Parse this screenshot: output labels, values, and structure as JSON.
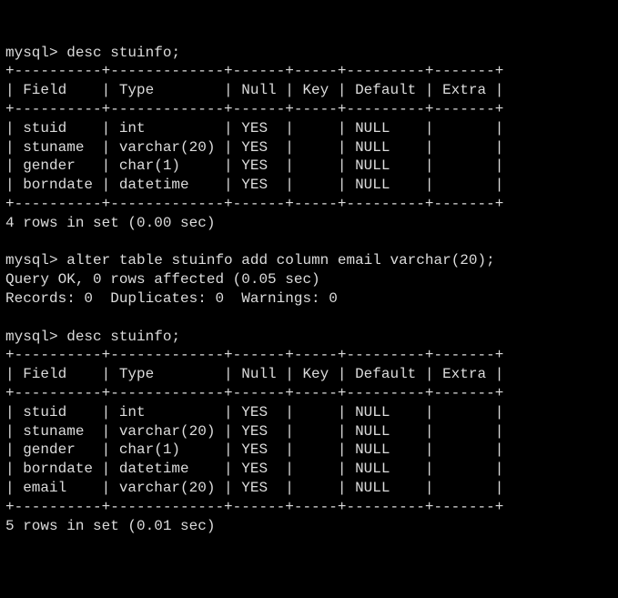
{
  "terminal": {
    "background_color": "#000000",
    "text_color": "#dcdcdc",
    "font_family": "Consolas, Courier New, monospace",
    "font_size": 16,
    "prompt": "mysql>",
    "blocks": [
      {
        "command": "desc stuinfo;",
        "table": {
          "border_top": "+----------+-------------+------+-----+---------+-------+",
          "header": "| Field    | Type        | Null | Key | Default | Extra |",
          "border_mid": "+----------+-------------+------+-----+---------+-------+",
          "columns": [
            "Field",
            "Type",
            "Null",
            "Key",
            "Default",
            "Extra"
          ],
          "rows": [
            [
              "stuid",
              "int",
              "YES",
              "",
              "NULL",
              ""
            ],
            [
              "stuname",
              "varchar(20)",
              "YES",
              "",
              "NULL",
              ""
            ],
            [
              "gender",
              "char(1)",
              "YES",
              "",
              "NULL",
              ""
            ],
            [
              "borndate",
              "datetime",
              "YES",
              "",
              "NULL",
              ""
            ]
          ],
          "row_lines": [
            "| stuid    | int         | YES  |     | NULL    |       |",
            "| stuname  | varchar(20) | YES  |     | NULL    |       |",
            "| gender   | char(1)     | YES  |     | NULL    |       |",
            "| borndate | datetime    | YES  |     | NULL    |       |"
          ],
          "border_bottom": "+----------+-------------+------+-----+---------+-------+"
        },
        "footer": "4 rows in set (0.00 sec)"
      },
      {
        "command": "alter table stuinfo add column email varchar(20);",
        "result_lines": [
          "Query OK, 0 rows affected (0.05 sec)",
          "Records: 0  Duplicates: 0  Warnings: 0"
        ]
      },
      {
        "command": "desc stuinfo;",
        "table": {
          "border_top": "+----------+-------------+------+-----+---------+-------+",
          "header": "| Field    | Type        | Null | Key | Default | Extra |",
          "border_mid": "+----------+-------------+------+-----+---------+-------+",
          "columns": [
            "Field",
            "Type",
            "Null",
            "Key",
            "Default",
            "Extra"
          ],
          "rows": [
            [
              "stuid",
              "int",
              "YES",
              "",
              "NULL",
              ""
            ],
            [
              "stuname",
              "varchar(20)",
              "YES",
              "",
              "NULL",
              ""
            ],
            [
              "gender",
              "char(1)",
              "YES",
              "",
              "NULL",
              ""
            ],
            [
              "borndate",
              "datetime",
              "YES",
              "",
              "NULL",
              ""
            ],
            [
              "email",
              "varchar(20)",
              "YES",
              "",
              "NULL",
              ""
            ]
          ],
          "row_lines": [
            "| stuid    | int         | YES  |     | NULL    |       |",
            "| stuname  | varchar(20) | YES  |     | NULL    |       |",
            "| gender   | char(1)     | YES  |     | NULL    |       |",
            "| borndate | datetime    | YES  |     | NULL    |       |",
            "| email    | varchar(20) | YES  |     | NULL    |       |"
          ],
          "border_bottom": "+----------+-------------+------+-----+---------+-------+"
        },
        "footer": "5 rows in set (0.01 sec)"
      }
    ]
  }
}
